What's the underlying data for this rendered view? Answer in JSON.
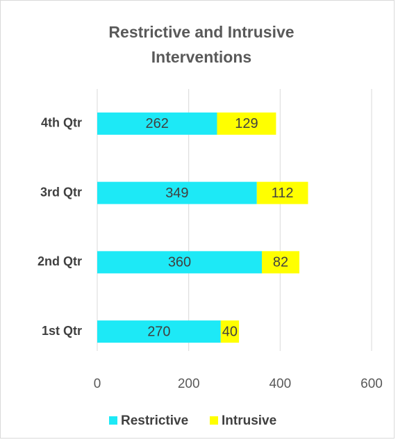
{
  "chart_data": {
    "type": "stacked_barh",
    "title": "Restrictive and Intrusive Interventions",
    "categories": [
      "1st Qtr",
      "2nd Qtr",
      "3rd Qtr",
      "4th Qtr"
    ],
    "series": [
      {
        "name": "Restrictive",
        "color": "#1de9f6",
        "values": [
          270,
          360,
          349,
          262
        ]
      },
      {
        "name": "Intrusive",
        "color": "#ffff00",
        "values": [
          40,
          82,
          112,
          129
        ]
      }
    ],
    "xlim": [
      0,
      600
    ],
    "xticks": [
      0,
      200,
      400,
      600
    ],
    "grid": true,
    "legend": "bottom"
  }
}
